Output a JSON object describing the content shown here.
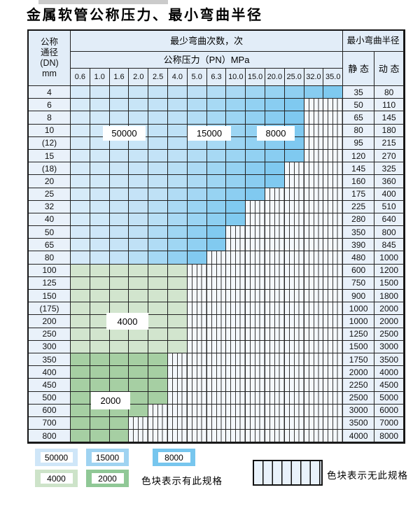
{
  "title": "金属软管公称压力、最小弯曲半径",
  "table": {
    "corner_lines": [
      "公称",
      "通径",
      "(DN)",
      "mm"
    ],
    "bend_cycles_header": "最少弯曲次数，次",
    "bend_radius_header": "最小弯曲半径",
    "pressure_header": "公称压力（PN）MPa",
    "static_header": "静 态",
    "dynamic_header": "动 态",
    "pressures": [
      "0.6",
      "1.0",
      "1.6",
      "2.0",
      "2.5",
      "4.0",
      "5.0",
      "6.3",
      "10.0",
      "15.0",
      "20.0",
      "25.0",
      "32.0",
      "35.0"
    ],
    "rows": [
      {
        "dn": "4",
        "colored": 14,
        "scheme": "blue",
        "static": "35",
        "dynamic": "80"
      },
      {
        "dn": "6",
        "colored": 12,
        "scheme": "blue",
        "static": "50",
        "dynamic": "110"
      },
      {
        "dn": "8",
        "colored": 12,
        "scheme": "blue",
        "static": "65",
        "dynamic": "145"
      },
      {
        "dn": "10",
        "colored": 12,
        "scheme": "blue",
        "static": "80",
        "dynamic": "180"
      },
      {
        "dn": "(12)",
        "colored": 12,
        "scheme": "blue",
        "static": "95",
        "dynamic": "215"
      },
      {
        "dn": "15",
        "colored": 12,
        "scheme": "blue",
        "static": "120",
        "dynamic": "270"
      },
      {
        "dn": "(18)",
        "colored": 11,
        "scheme": "blue",
        "static": "145",
        "dynamic": "325"
      },
      {
        "dn": "20",
        "colored": 11,
        "scheme": "blue",
        "static": "160",
        "dynamic": "360"
      },
      {
        "dn": "25",
        "colored": 10,
        "scheme": "blue",
        "static": "175",
        "dynamic": "400"
      },
      {
        "dn": "32",
        "colored": 9,
        "scheme": "blue",
        "static": "225",
        "dynamic": "510"
      },
      {
        "dn": "40",
        "colored": 9,
        "scheme": "blue",
        "static": "280",
        "dynamic": "640"
      },
      {
        "dn": "50",
        "colored": 8,
        "scheme": "blue",
        "static": "350",
        "dynamic": "800"
      },
      {
        "dn": "65",
        "colored": 8,
        "scheme": "blue",
        "static": "390",
        "dynamic": "845"
      },
      {
        "dn": "80",
        "colored": 7,
        "scheme": "blue",
        "static": "480",
        "dynamic": "1000"
      },
      {
        "dn": "100",
        "colored": 6,
        "scheme": "green_light",
        "static": "600",
        "dynamic": "1200"
      },
      {
        "dn": "125",
        "colored": 6,
        "scheme": "green_light",
        "static": "750",
        "dynamic": "1500"
      },
      {
        "dn": "150",
        "colored": 6,
        "scheme": "green_light",
        "static": "900",
        "dynamic": "1800"
      },
      {
        "dn": "(175)",
        "colored": 6,
        "scheme": "green_light",
        "static": "1000",
        "dynamic": "2000"
      },
      {
        "dn": "200",
        "colored": 6,
        "scheme": "green_light",
        "static": "1000",
        "dynamic": "2000"
      },
      {
        "dn": "250",
        "colored": 6,
        "scheme": "green_light",
        "static": "1250",
        "dynamic": "2500"
      },
      {
        "dn": "300",
        "colored": 6,
        "scheme": "green_light",
        "static": "1500",
        "dynamic": "3000"
      },
      {
        "dn": "350",
        "colored": 5,
        "scheme": "green_dark",
        "static": "1750",
        "dynamic": "3500"
      },
      {
        "dn": "400",
        "colored": 5,
        "scheme": "green_dark",
        "static": "2000",
        "dynamic": "4000"
      },
      {
        "dn": "450",
        "colored": 5,
        "scheme": "green_dark",
        "static": "2250",
        "dynamic": "4500"
      },
      {
        "dn": "500",
        "colored": 5,
        "scheme": "green_dark",
        "static": "2500",
        "dynamic": "5000"
      },
      {
        "dn": "600",
        "colored": 4,
        "scheme": "green_dark",
        "static": "3000",
        "dynamic": "6000"
      },
      {
        "dn": "700",
        "colored": 3,
        "scheme": "green_dark",
        "static": "3500",
        "dynamic": "7000"
      },
      {
        "dn": "800",
        "colored": 3,
        "scheme": "green_dark",
        "static": "4000",
        "dynamic": "8000"
      }
    ]
  },
  "overlay_labels": [
    "50000",
    "15000",
    "8000",
    "4000",
    "2000"
  ],
  "colors": {
    "blue_gradient_stops": [
      "#d9ecf9",
      "#bfe1f6",
      "#9dd5f3",
      "#7ac7ef"
    ],
    "green_light": "#d2e5ce",
    "green_dark": "#a6cfa3"
  },
  "legend": {
    "items": [
      {
        "label": "50000",
        "color": "#cfe6f8"
      },
      {
        "label": "15000",
        "color": "#9fd3f1"
      },
      {
        "label": "8000",
        "color": "#77c6ee"
      },
      {
        "label": "4000",
        "color": "#cde3c9"
      },
      {
        "label": "2000",
        "color": "#90c896"
      }
    ],
    "has_spec_text": "色块表示有此规格",
    "no_spec_text": "色块表示无此规格"
  }
}
